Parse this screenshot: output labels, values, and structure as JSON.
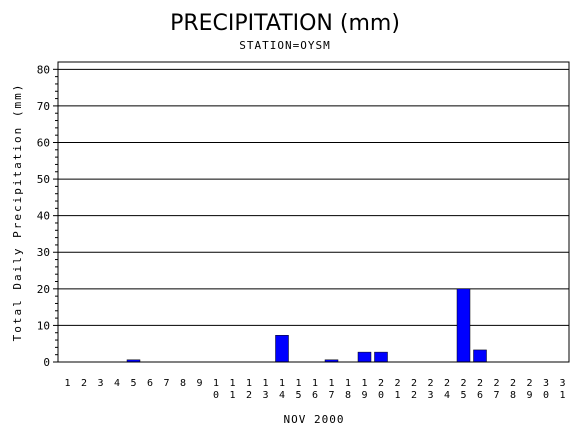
{
  "chart_data": {
    "type": "bar",
    "title": "PRECIPITATION (mm)",
    "subtitle": "STATION=OYSM",
    "xlabel": "NOV 2000",
    "ylabel": "Total Daily Precipitation (mm)",
    "ylim": [
      0,
      82
    ],
    "yticks": [
      0,
      10,
      20,
      30,
      40,
      50,
      60,
      70,
      80
    ],
    "grid": true,
    "bar_color": "#0000ff",
    "categories": [
      "1",
      "2",
      "3",
      "4",
      "5",
      "6",
      "7",
      "8",
      "9",
      "10",
      "11",
      "12",
      "13",
      "14",
      "15",
      "16",
      "17",
      "18",
      "19",
      "20",
      "21",
      "22",
      "23",
      "24",
      "25",
      "26",
      "27",
      "28",
      "29",
      "30",
      "31"
    ],
    "values": [
      0,
      0,
      0,
      0,
      0.6,
      0,
      0,
      0,
      0,
      0,
      0,
      0,
      0,
      7.3,
      0,
      0,
      0.6,
      0,
      2.7,
      2.7,
      0,
      0,
      0,
      0,
      20,
      3.3,
      0,
      0,
      0,
      0,
      0
    ]
  }
}
